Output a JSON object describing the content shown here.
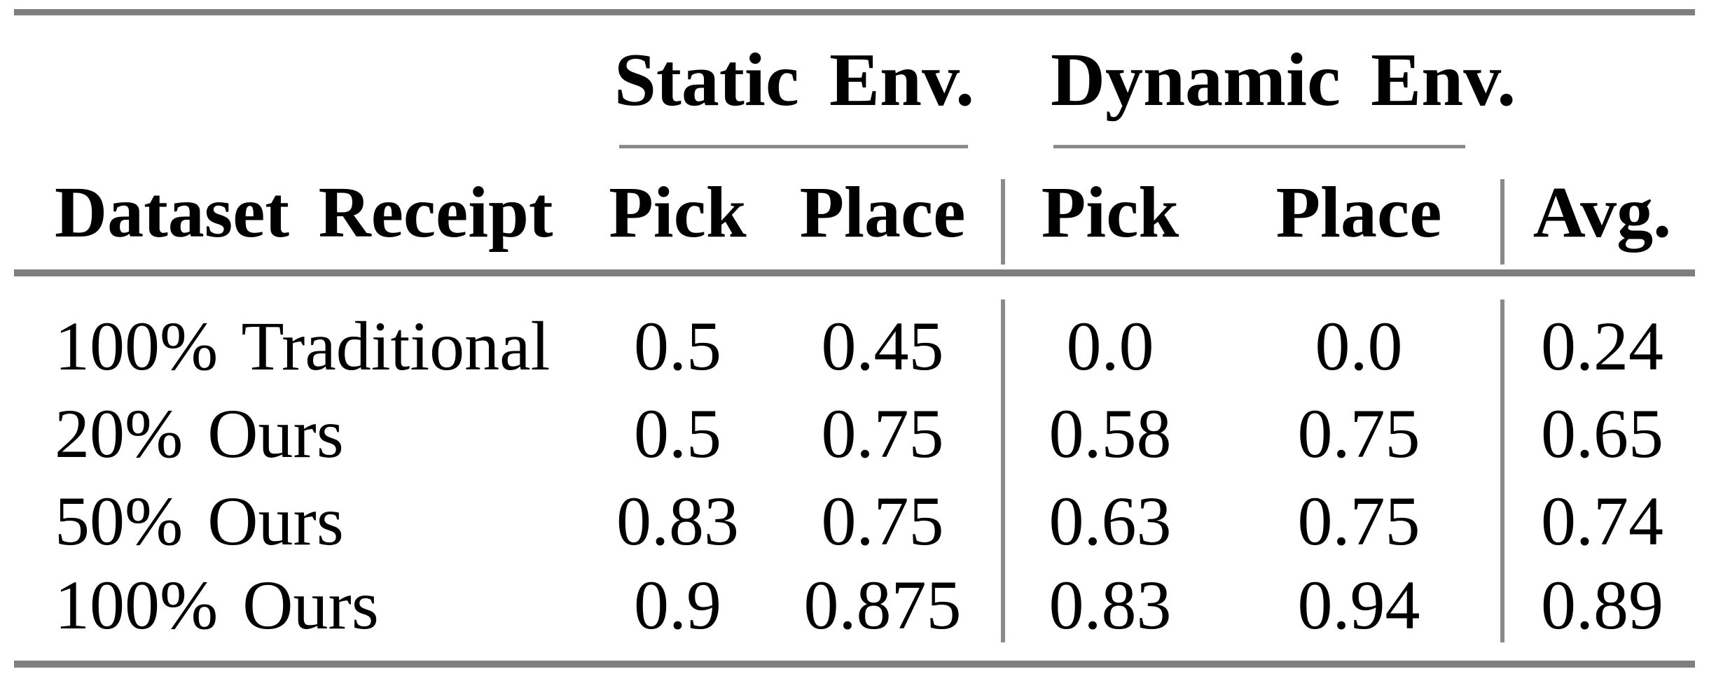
{
  "table": {
    "col_groups": [
      {
        "label": "Static Env."
      },
      {
        "label": "Dynamic Env."
      }
    ],
    "columns": {
      "row_header": "Dataset Receipt",
      "static_pick": "Pick",
      "static_place": "Place",
      "dynamic_pick": "Pick",
      "dynamic_place": "Place",
      "avg": "Avg."
    },
    "rows": [
      {
        "label": "100% Traditional",
        "static_pick": "0.5",
        "static_place": "0.45",
        "dynamic_pick": "0.0",
        "dynamic_place": "0.0",
        "avg": "0.24"
      },
      {
        "label": "20% Ours",
        "static_pick": "0.5",
        "static_place": "0.75",
        "dynamic_pick": "0.58",
        "dynamic_place": "0.75",
        "avg": "0.65"
      },
      {
        "label": "50% Ours",
        "static_pick": "0.83",
        "static_place": "0.75",
        "dynamic_pick": "0.63",
        "dynamic_place": "0.75",
        "avg": "0.74"
      },
      {
        "label": "100% Ours",
        "static_pick": "0.9",
        "static_place": "0.875",
        "dynamic_pick": "0.83",
        "dynamic_place": "0.94",
        "avg": "0.89"
      }
    ]
  },
  "colors": {
    "thick_rule": "#7f7f7f",
    "thin_rule": "#8a8a8a",
    "text": "#000000",
    "background": "#ffffff"
  }
}
